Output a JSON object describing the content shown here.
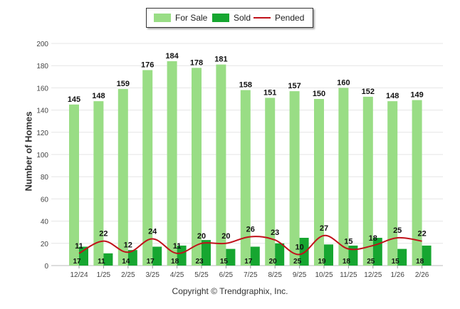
{
  "legend": {
    "for_sale": "For Sale",
    "sold": "Sold",
    "pended": "Pended"
  },
  "copyright": "Copyright © Trendgraphix, Inc.",
  "colors": {
    "for_sale": "#99dd85",
    "sold": "#16a630",
    "pended": "#c0111a",
    "grid": "#e6e6e6"
  },
  "chart_data": {
    "type": "bar",
    "title": "",
    "xlabel": "",
    "ylabel": "Number of Homes",
    "ylim": [
      0,
      200
    ],
    "yticks": [
      0,
      20,
      40,
      60,
      80,
      100,
      120,
      140,
      160,
      180,
      200
    ],
    "grid": true,
    "legend_position": "top-center",
    "categories": [
      "12/24",
      "1/25",
      "2/25",
      "3/25",
      "4/25",
      "5/25",
      "6/25",
      "7/25",
      "8/25",
      "9/25",
      "10/25",
      "11/25",
      "12/25",
      "1/26",
      "2/26"
    ],
    "series": [
      {
        "name": "For Sale",
        "type": "bar",
        "values": [
          145,
          148,
          159,
          176,
          184,
          178,
          181,
          158,
          151,
          157,
          150,
          160,
          152,
          148,
          149
        ]
      },
      {
        "name": "Sold",
        "type": "bar",
        "values": [
          17,
          11,
          14,
          17,
          18,
          23,
          15,
          17,
          20,
          25,
          19,
          18,
          25,
          15,
          18
        ]
      },
      {
        "name": "Pended",
        "type": "line",
        "values": [
          11,
          22,
          12,
          24,
          11,
          20,
          20,
          26,
          23,
          10,
          27,
          15,
          18,
          25,
          22
        ]
      }
    ]
  }
}
